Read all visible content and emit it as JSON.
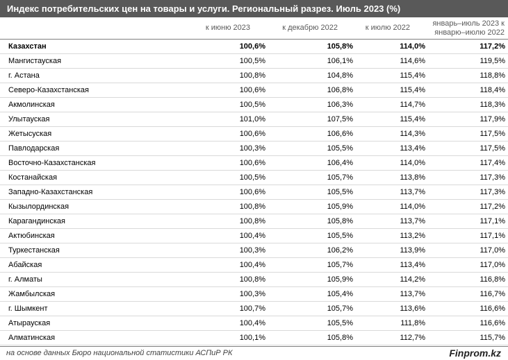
{
  "title": "Индекс потребительских цен на товары и услуги. Региональный разрез. Июль 2023 (%)",
  "columns": [
    "к июню 2023",
    "к декабрю 2022",
    "к июлю 2022",
    "январь–июль 2023 к январю–июлю 2022"
  ],
  "rows": [
    {
      "region": "Казахстан",
      "v1": "100,6%",
      "v2": "105,8%",
      "v3": "114,0%",
      "v4": "117,2%"
    },
    {
      "region": "Мангистауская",
      "v1": "100,5%",
      "v2": "106,1%",
      "v3": "114,6%",
      "v4": "119,5%"
    },
    {
      "region": "г. Астана",
      "v1": "100,8%",
      "v2": "104,8%",
      "v3": "115,4%",
      "v4": "118,8%"
    },
    {
      "region": "Северо-Казахстанская",
      "v1": "100,6%",
      "v2": "106,8%",
      "v3": "115,4%",
      "v4": "118,4%"
    },
    {
      "region": "Акмолинская",
      "v1": "100,5%",
      "v2": "106,3%",
      "v3": "114,7%",
      "v4": "118,3%"
    },
    {
      "region": "Улытауская",
      "v1": "101,0%",
      "v2": "107,5%",
      "v3": "115,4%",
      "v4": "117,9%"
    },
    {
      "region": "Жетысуская",
      "v1": "100,6%",
      "v2": "106,6%",
      "v3": "114,3%",
      "v4": "117,5%"
    },
    {
      "region": "Павлодарская",
      "v1": "100,3%",
      "v2": "105,5%",
      "v3": "113,4%",
      "v4": "117,5%"
    },
    {
      "region": "Восточно-Казахстанская",
      "v1": "100,6%",
      "v2": "106,4%",
      "v3": "114,0%",
      "v4": "117,4%"
    },
    {
      "region": "Костанайская",
      "v1": "100,5%",
      "v2": "105,7%",
      "v3": "113,8%",
      "v4": "117,3%"
    },
    {
      "region": "Западно-Казахстанская",
      "v1": "100,6%",
      "v2": "105,5%",
      "v3": "113,7%",
      "v4": "117,3%"
    },
    {
      "region": "Кызылординская",
      "v1": "100,8%",
      "v2": "105,9%",
      "v3": "114,0%",
      "v4": "117,2%"
    },
    {
      "region": "Карагандинская",
      "v1": "100,8%",
      "v2": "105,8%",
      "v3": "113,7%",
      "v4": "117,1%"
    },
    {
      "region": "Актюбинская",
      "v1": "100,4%",
      "v2": "105,5%",
      "v3": "113,2%",
      "v4": "117,1%"
    },
    {
      "region": "Туркестанская",
      "v1": "100,3%",
      "v2": "106,2%",
      "v3": "113,9%",
      "v4": "117,0%"
    },
    {
      "region": "Абайская",
      "v1": "100,4%",
      "v2": "105,7%",
      "v3": "113,4%",
      "v4": "117,0%"
    },
    {
      "region": "г. Алматы",
      "v1": "100,8%",
      "v2": "105,9%",
      "v3": "114,2%",
      "v4": "116,8%"
    },
    {
      "region": "Жамбылская",
      "v1": "100,3%",
      "v2": "105,4%",
      "v3": "113,7%",
      "v4": "116,7%"
    },
    {
      "region": "г. Шымкент",
      "v1": "100,7%",
      "v2": "105,7%",
      "v3": "113,6%",
      "v4": "116,6%"
    },
    {
      "region": "Атырауская",
      "v1": "100,4%",
      "v2": "105,5%",
      "v3": "111,8%",
      "v4": "116,6%"
    },
    {
      "region": "Алматинская",
      "v1": "100,1%",
      "v2": "105,8%",
      "v3": "112,7%",
      "v4": "115,7%"
    }
  ],
  "footer": {
    "source": "на основе данных Бюро национальной статистики АСПиР РК",
    "brand": "Finprom.kz"
  },
  "colors": {
    "title_bg": "#595959",
    "title_text": "#ffffff",
    "header_text": "#595959"
  }
}
